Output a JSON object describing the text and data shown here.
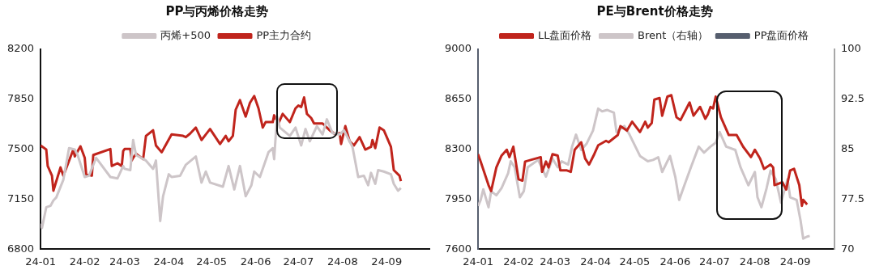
{
  "chart_data": [
    {
      "type": "line",
      "title": "PP与丙烯价格走势",
      "legend": "top",
      "marker": "none",
      "xlim": [
        "--01-01",
        "--10-01"
      ],
      "xticks": [
        {
          "value": "--01-01",
          "label": "24-01"
        },
        {
          "value": "--02-01",
          "label": "24-02"
        },
        {
          "value": "--03-01",
          "label": "24-03"
        },
        {
          "value": "--04-01",
          "label": "24-04"
        },
        {
          "value": "--05-01",
          "label": "24-05"
        },
        {
          "value": "--06-01",
          "label": "24-06"
        },
        {
          "value": "--07-01",
          "label": "24-07"
        },
        {
          "value": "--08-01",
          "label": "24-08"
        },
        {
          "value": "--09-01",
          "label": "24-09"
        }
      ],
      "ylim": [
        6800,
        8200
      ],
      "yticks": [
        6800,
        7150,
        7500,
        7850,
        8200
      ],
      "series": [
        {
          "name": "丙烯+500",
          "color": "#cdc5c8",
          "x": [
            "--01-01",
            "--01-02",
            "--01-05",
            "--01-08",
            "--01-10",
            "--01-12",
            "--01-17",
            "--01-21",
            "--01-25",
            "--01-27",
            "--02-01",
            "--02-04",
            "--02-09",
            "--02-19",
            "--02-24",
            "--02-28",
            "--03-01",
            "--03-05",
            "--03-07",
            "--03-09",
            "--03-16",
            "--03-21",
            "--03-23",
            "--03-26",
            "--03-28",
            "--04-01",
            "--04-03",
            "--04-09",
            "--04-13",
            "--04-20",
            "--04-24",
            "--04-27",
            "--04-30",
            "--05-09",
            "--05-13",
            "--05-17",
            "--05-21",
            "--05-25",
            "--05-29",
            "--05-31",
            "--06-04",
            "--06-10",
            "--06-13",
            "--06-14",
            "--06-16",
            "--06-18",
            "--06-25",
            "--06-29",
            "--07-03",
            "--07-06",
            "--07-09",
            "--07-14",
            "--07-18",
            "--07-21",
            "--07-25",
            "--07-30",
            "--08-02",
            "--08-08",
            "--08-12",
            "--08-16",
            "--08-19",
            "--08-21",
            "--08-24",
            "--08-26",
            "--08-30",
            "--09-04",
            "--09-06",
            "--09-09",
            "--09-11"
          ],
          "values": [
            6979,
            6950,
            7094,
            7104,
            7142,
            7162,
            7287,
            7508,
            7498,
            7460,
            7306,
            7315,
            7440,
            7306,
            7296,
            7383,
            7363,
            7354,
            7565,
            7460,
            7421,
            7363,
            7421,
            6998,
            7171,
            7325,
            7306,
            7315,
            7392,
            7450,
            7267,
            7344,
            7267,
            7238,
            7383,
            7219,
            7383,
            7171,
            7248,
            7344,
            7306,
            7479,
            7508,
            7431,
            7729,
            7652,
            7594,
            7652,
            7527,
            7642,
            7556,
            7662,
            7604,
            7710,
            7613,
            7604,
            7633,
            7517,
            7306,
            7315,
            7248,
            7335,
            7258,
            7354,
            7344,
            7325,
            7258,
            7210,
            7229
          ]
        },
        {
          "name": "PP主力合约",
          "color": "#c0241c",
          "x": [
            "--01-01",
            "--01-05",
            "--01-06",
            "--01-09",
            "--01-10",
            "--01-15",
            "--01-17",
            "--01-24",
            "--01-25",
            "--01-29",
            "--02-01",
            "--02-02",
            "--02-06",
            "--02-07",
            "--02-19",
            "--02-20",
            "--02-24",
            "--02-27",
            "--02-28",
            "--03-01",
            "--03-05",
            "--03-06",
            "--03-07",
            "--03-09",
            "--03-14",
            "--03-16",
            "--03-21",
            "--03-23",
            "--03-27",
            "--04-03",
            "--04-11",
            "--04-13",
            "--04-16",
            "--04-20",
            "--04-24",
            "--04-30",
            "--05-07",
            "--05-11",
            "--05-13",
            "--05-16",
            "--05-18",
            "--05-21",
            "--05-25",
            "--05-28",
            "--05-31",
            "--06-03",
            "--06-06",
            "--06-08",
            "--06-13",
            "--06-14",
            "--06-17",
            "--06-20",
            "--06-25",
            "--06-29",
            "--07-01",
            "--07-03",
            "--07-05",
            "--07-07",
            "--07-10",
            "--07-12",
            "--07-18",
            "--07-23",
            "--07-27",
            "--07-30",
            "--07-31",
            "--08-03",
            "--08-06",
            "--08-09",
            "--08-13",
            "--08-17",
            "--08-21",
            "--08-22",
            "--08-24",
            "--08-27",
            "--08-30",
            "--09-04",
            "--09-06",
            "--09-10",
            "--09-11"
          ],
          "values": [
            7527,
            7498,
            7383,
            7315,
            7210,
            7373,
            7315,
            7498,
            7450,
            7521,
            7440,
            7325,
            7315,
            7460,
            7502,
            7383,
            7402,
            7383,
            7488,
            7502,
            7502,
            7421,
            7440,
            7469,
            7431,
            7594,
            7633,
            7527,
            7479,
            7604,
            7594,
            7585,
            7610,
            7652,
            7565,
            7642,
            7537,
            7594,
            7556,
            7594,
            7777,
            7844,
            7729,
            7825,
            7873,
            7787,
            7652,
            7690,
            7690,
            7738,
            7681,
            7748,
            7690,
            7787,
            7806,
            7796,
            7863,
            7748,
            7719,
            7681,
            7681,
            7633,
            7604,
            7613,
            7537,
            7662,
            7556,
            7527,
            7585,
            7498,
            7517,
            7565,
            7508,
            7652,
            7633,
            7517,
            7354,
            7315,
            7277
          ]
        }
      ]
    },
    {
      "type": "line",
      "title": "PE与Brent价格走势",
      "legend": "top",
      "marker": "none",
      "xlim": [
        "--01-01",
        "--10-01"
      ],
      "xticks": [
        {
          "value": "--01-01",
          "label": "24-01"
        },
        {
          "value": "--02-01",
          "label": "24-02"
        },
        {
          "value": "--03-01",
          "label": "24-03"
        },
        {
          "value": "--04-01",
          "label": "24-04"
        },
        {
          "value": "--05-01",
          "label": "24-05"
        },
        {
          "value": "--06-01",
          "label": "24-06"
        },
        {
          "value": "--07-01",
          "label": "24-07"
        },
        {
          "value": "--08-01",
          "label": "24-08"
        },
        {
          "value": "--09-01",
          "label": "24-09"
        }
      ],
      "ylim": [
        7600,
        9000
      ],
      "yticks": [
        7600,
        7950,
        8300,
        8650,
        9000
      ],
      "y2lim": [
        70,
        100
      ],
      "y2ticks": [
        70,
        {
          "value": 77.5,
          "label": "77.5"
        },
        85,
        {
          "value": 92.5,
          "label": "92.5"
        },
        100
      ],
      "series": [
        {
          "name": "LL盘面价格",
          "color": "#c0241c",
          "x": [
            "--01-01",
            "--01-03",
            "--01-06",
            "--01-09",
            "--01-11",
            "--01-15",
            "--01-19",
            "--01-23",
            "--01-25",
            "--01-28",
            "--02-01",
            "--02-04",
            "--02-06",
            "--02-18",
            "--02-19",
            "--02-22",
            "--02-24",
            "--02-27",
            "--03-03",
            "--03-05",
            "--03-10",
            "--03-13",
            "--03-16",
            "--03-21",
            "--03-24",
            "--03-27",
            "--03-31",
            "--04-03",
            "--04-09",
            "--04-11",
            "--04-18",
            "--04-20",
            "--04-25",
            "--04-29",
            "--05-05",
            "--05-09",
            "--05-11",
            "--05-14",
            "--05-16",
            "--05-20",
            "--05-22",
            "--05-26",
            "--05-29",
            "--06-02",
            "--06-05",
            "--06-12",
            "--06-15",
            "--06-20",
            "--06-24",
            "--06-26",
            "--06-28",
            "--06-30",
            "--07-02",
            "--07-06",
            "--07-09",
            "--07-12",
            "--07-18",
            "--07-23",
            "--07-29",
            "--08-01",
            "--08-05",
            "--08-08",
            "--08-13",
            "--08-15",
            "--08-16",
            "--08-22",
            "--08-25",
            "--08-28",
            "--08-31",
            "--09-04",
            "--09-06",
            "--09-07",
            "--09-10"
          ],
          "values": [
            8266,
            8214,
            8131,
            8049,
            8007,
            8173,
            8256,
            8297,
            8245,
            8318,
            8090,
            8080,
            8214,
            8245,
            8142,
            8214,
            8173,
            8266,
            8256,
            8152,
            8152,
            8142,
            8297,
            8349,
            8235,
            8193,
            8266,
            8328,
            8359,
            8349,
            8400,
            8462,
            8431,
            8493,
            8421,
            8493,
            8452,
            8483,
            8648,
            8659,
            8535,
            8669,
            8679,
            8524,
            8504,
            8628,
            8535,
            8597,
            8514,
            8545,
            8597,
            8586,
            8669,
            8524,
            8462,
            8400,
            8400,
            8318,
            8245,
            8297,
            8235,
            8163,
            8193,
            8173,
            8049,
            8069,
            8018,
            8152,
            8163,
            8049,
            7904,
            7946,
            7914
          ]
        },
        {
          "name": "Brent（右轴）",
          "color": "#cdc5c8",
          "axis": "y2",
          "x": [
            "--01-01",
            "--01-03",
            "--01-05",
            "--01-09",
            "--01-11",
            "--01-15",
            "--01-19",
            "--01-24",
            "--01-26",
            "--01-29",
            "--02-02",
            "--02-05",
            "--02-08",
            "--02-16",
            "--02-22",
            "--02-27",
            "--03-03",
            "--03-06",
            "--03-11",
            "--03-14",
            "--03-17",
            "--03-21",
            "--03-25",
            "--03-30",
            "--04-03",
            "--04-06",
            "--04-10",
            "--04-15",
            "--04-17",
            "--04-23",
            "--04-27",
            "--05-05",
            "--05-11",
            "--05-15",
            "--05-19",
            "--05-22",
            "--05-28",
            "--06-01",
            "--06-04",
            "--06-08",
            "--06-13",
            "--06-19",
            "--06-23",
            "--06-28",
            "--07-02",
            "--07-05",
            "--07-10",
            "--07-17",
            "--07-21",
            "--07-27",
            "--08-01",
            "--08-03",
            "--08-06",
            "--08-10",
            "--08-13",
            "--08-17",
            "--08-21",
            "--08-26",
            "--08-28",
            "--09-02",
            "--09-05",
            "--09-07",
            "--09-10",
            "--09-12"
          ],
          "values": [
            76.5,
            77.4,
            79.0,
            76.3,
            78.7,
            78.1,
            79.2,
            81.4,
            83.2,
            82.3,
            77.8,
            78.7,
            82.3,
            83.4,
            80.9,
            83.6,
            82.3,
            83.2,
            82.7,
            85.4,
            87.2,
            84.9,
            85.8,
            87.8,
            91.1,
            90.7,
            90.9,
            90.5,
            87.6,
            88.5,
            87.2,
            84.0,
            83.2,
            83.4,
            83.8,
            81.6,
            84.0,
            80.9,
            77.4,
            79.6,
            82.3,
            85.4,
            84.5,
            85.4,
            86.0,
            87.6,
            85.4,
            84.9,
            82.3,
            79.6,
            81.6,
            77.8,
            76.3,
            79.2,
            81.8,
            80.5,
            77.0,
            80.5,
            77.8,
            77.4,
            74.3,
            71.6,
            71.9,
            72.0
          ]
        },
        {
          "name": "PP盘面价格",
          "color": "#565e6e"
        }
      ]
    }
  ]
}
